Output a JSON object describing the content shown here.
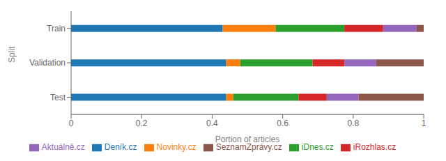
{
  "chart_data": {
    "type": "bar",
    "orientation": "horizontal",
    "stacked": true,
    "grid": false,
    "legend": "bottom",
    "xlabel": "Portion of articles",
    "ylabel": "Split",
    "categories": [
      "Test",
      "Validation",
      "Train"
    ],
    "series": [
      {
        "name": "Deník.cz",
        "color": "#1f77b4",
        "values": [
          0.44,
          0.44,
          0.43
        ]
      },
      {
        "name": "Novinky.cz",
        "color": "#ff7f0e",
        "values": [
          0.02,
          0.04,
          0.15
        ]
      },
      {
        "name": "iDnes.cz",
        "color": "#2ca02c",
        "values": [
          0.185,
          0.205,
          0.195
        ]
      },
      {
        "name": "iRozhlas.cz",
        "color": "#d62728",
        "values": [
          0.08,
          0.09,
          0.11
        ]
      },
      {
        "name": "Aktuálně.cz",
        "color": "#9467bd",
        "values": [
          0.09,
          0.09,
          0.095
        ]
      },
      {
        "name": "SeznamZprávy.cz",
        "color": "#8c564b",
        "values": [
          0.185,
          0.135,
          0.02
        ]
      }
    ],
    "xlim": [
      0.0,
      1.0
    ],
    "xticks": [
      0.0,
      0.2,
      0.4,
      0.6,
      0.8,
      1.0
    ]
  }
}
